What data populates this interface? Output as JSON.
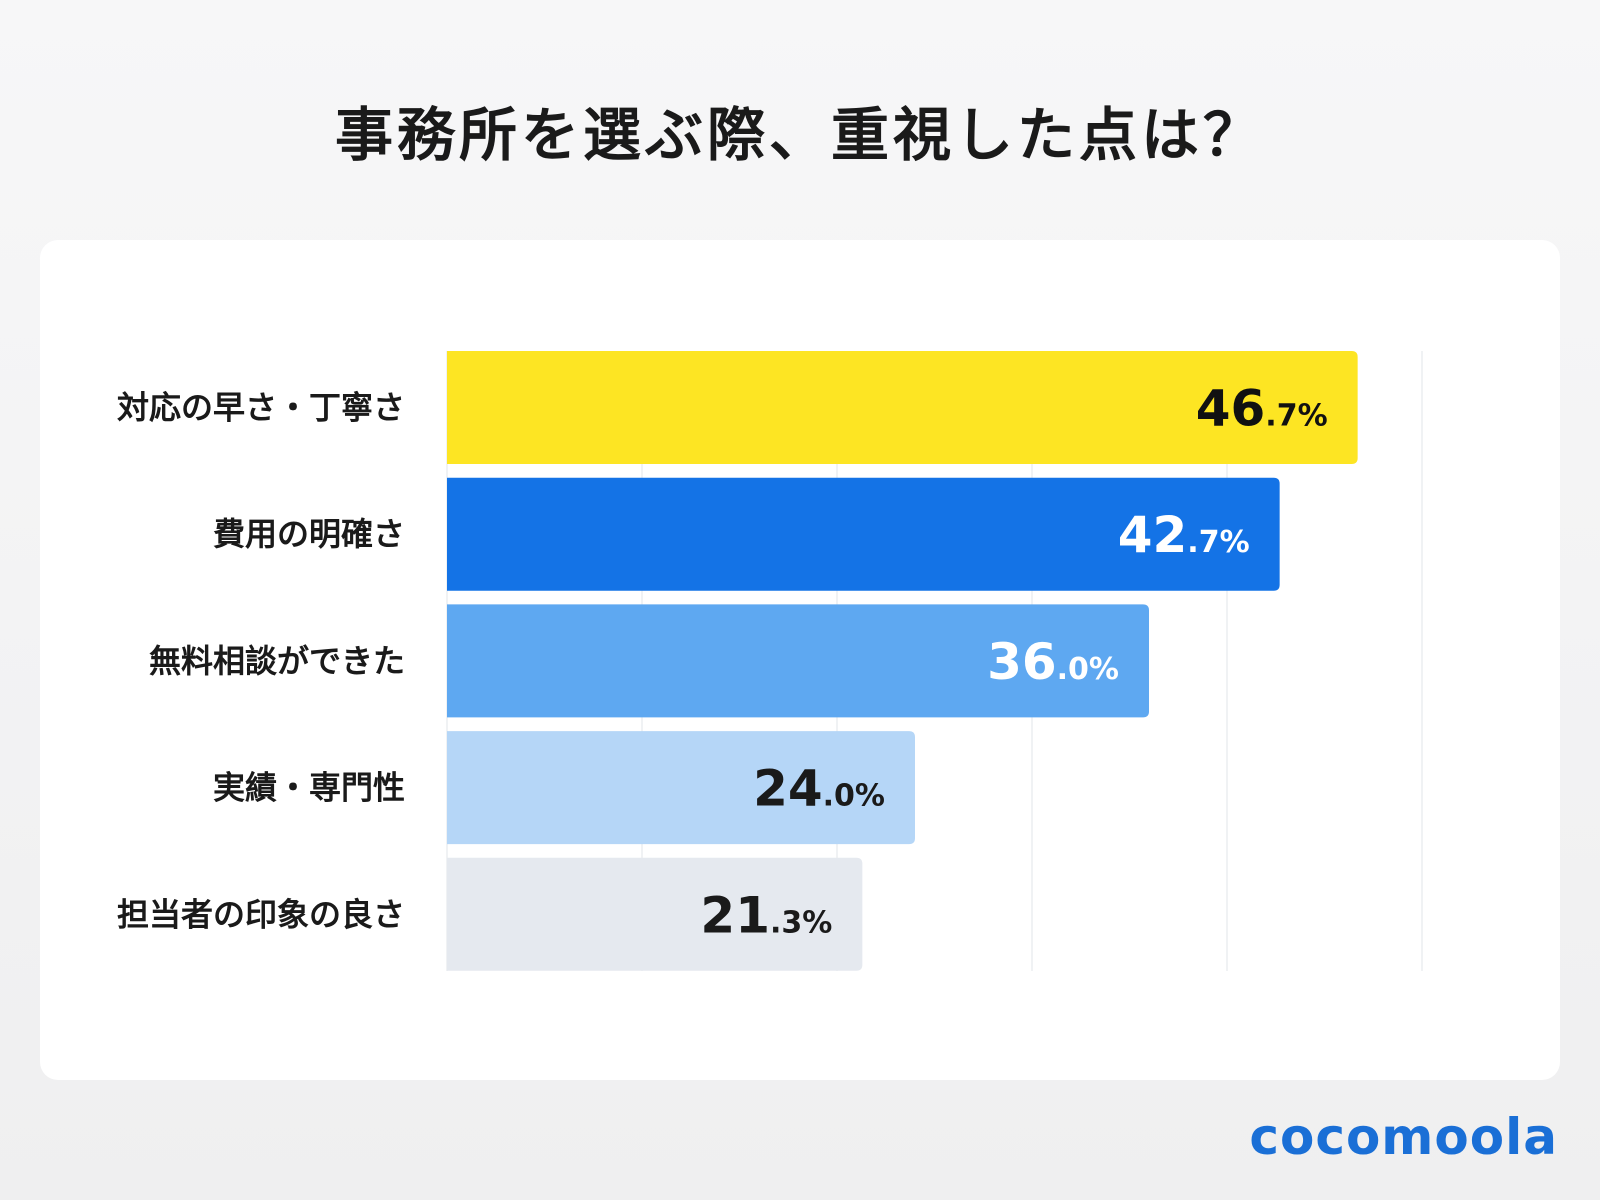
{
  "title": "事務所を選ぶ際、重視した点は？",
  "logo_text": "cocomoola",
  "chart_data": {
    "type": "bar",
    "orientation": "horizontal",
    "title": "事務所を選ぶ際、重視した点は？",
    "categories": [
      "対応の早さ・丁寧さ",
      "費用の明確さ",
      "無料相談ができた",
      "実績・専門性",
      "担当者の印象の良さ"
    ],
    "values": [
      46.7,
      42.7,
      36.0,
      24.0,
      21.3
    ],
    "unit": "%",
    "xlim": [
      0,
      50
    ],
    "grid": true,
    "gridline_step": 10,
    "bar_colors": [
      "#fde523",
      "#1473e6",
      "#5ea8f1",
      "#b5d6f7",
      "#e5e9ef"
    ],
    "label_colors": [
      "#111111",
      "#ffffff",
      "#ffffff",
      "#1a1a1a",
      "#1a1a1a"
    ]
  }
}
